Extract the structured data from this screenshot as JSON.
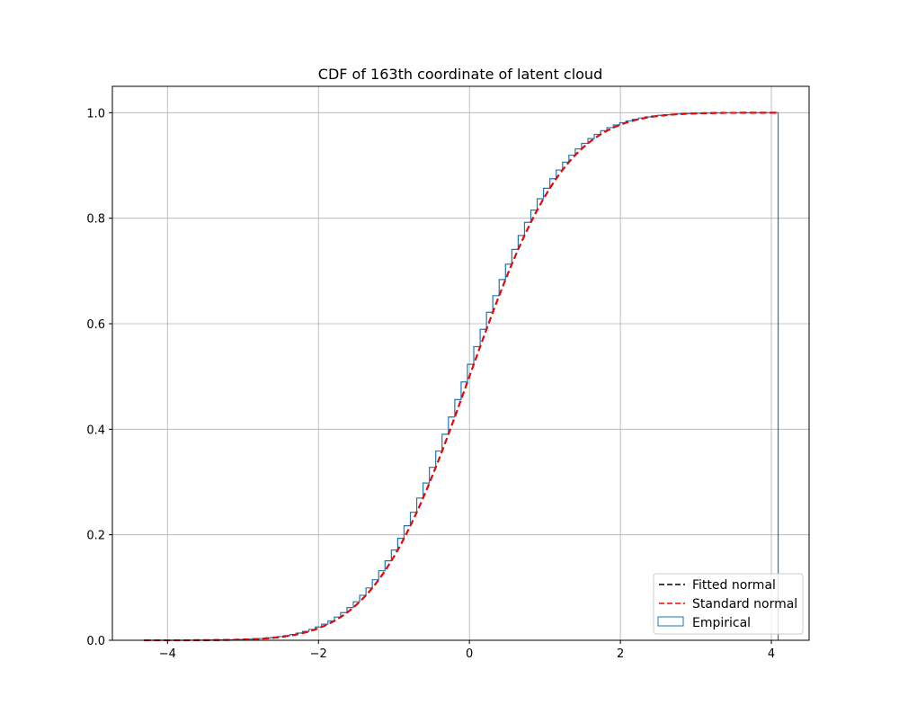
{
  "chart_data": {
    "type": "line",
    "title": "CDF of 163th coordinate of latent cloud",
    "xlabel": "",
    "ylabel": "",
    "xlim": [
      -4.73,
      4.5
    ],
    "ylim": [
      0,
      1.05
    ],
    "grid": true,
    "legend_placement": "lower right",
    "x_ticks": [
      "−4",
      "−2",
      "0",
      "2",
      "4"
    ],
    "x_tick_values": [
      -4,
      -2,
      0,
      2,
      4
    ],
    "y_ticks": [
      "0.0",
      "0.2",
      "0.4",
      "0.6",
      "0.8",
      "1.0"
    ],
    "y_tick_values": [
      0,
      0.2,
      0.4,
      0.6,
      0.8,
      1.0
    ],
    "series": [
      {
        "name": "Fitted normal",
        "kind": "normal_cdf",
        "mean": 0.0,
        "std": 1.0,
        "color": "#000000",
        "style": "dashed"
      },
      {
        "name": "Standard normal",
        "kind": "normal_cdf",
        "mean": 0.0,
        "std": 1.0,
        "color": "#ff0000",
        "style": "dashed"
      },
      {
        "name": "Empirical",
        "kind": "cumulative_step_histogram",
        "color": "#1f77b4",
        "bin_start": -4.31,
        "bin_end": 4.09,
        "bins": 100,
        "values": [
          0,
          0,
          0,
          0,
          0,
          0,
          0,
          0.0001,
          0.0002,
          0.0003,
          0.0004,
          0.0005,
          0.0006,
          0.0009,
          0.0011,
          0.0015,
          0.002,
          0.0026,
          0.0033,
          0.0043,
          0.0054,
          0.0069,
          0.0087,
          0.0109,
          0.0136,
          0.0168,
          0.0206,
          0.0251,
          0.0305,
          0.0367,
          0.044,
          0.0524,
          0.062,
          0.073,
          0.0853,
          0.0992,
          0.1147,
          0.1318,
          0.1506,
          0.1711,
          0.1932,
          0.2171,
          0.2426,
          0.2696,
          0.2981,
          0.3278,
          0.3587,
          0.3905,
          0.4231,
          0.4562,
          0.4896,
          0.5231,
          0.5565,
          0.5894,
          0.6217,
          0.6532,
          0.6837,
          0.7129,
          0.7409,
          0.7673,
          0.7922,
          0.8154,
          0.8369,
          0.8568,
          0.8749,
          0.8914,
          0.9063,
          0.9195,
          0.9314,
          0.9418,
          0.9509,
          0.9589,
          0.9658,
          0.9717,
          0.9767,
          0.981,
          0.9845,
          0.9875,
          0.99,
          0.992,
          0.9937,
          0.995,
          0.9961,
          0.997,
          0.9977,
          0.9982,
          0.9986,
          0.999,
          0.9992,
          0.9994,
          0.9996,
          0.9997,
          0.9998,
          0.9998,
          0.9999,
          0.9999,
          0.9999,
          1.0,
          1.0,
          1.0
        ]
      }
    ]
  }
}
